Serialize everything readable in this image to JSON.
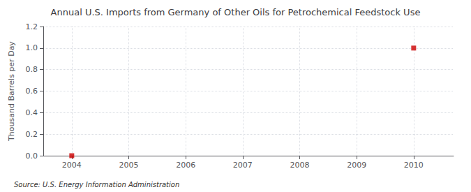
{
  "chart_data": {
    "type": "scatter",
    "title": "Annual U.S. Imports from Germany of Other Oils for Petrochemical Feedstock Use",
    "ylabel": "Thousand Barrels per Day",
    "source": "Source: U.S. Energy Information Administration",
    "x": [
      2010,
      2004
    ],
    "values": [
      1.0,
      0.0
    ],
    "color": "#cc0000",
    "marker": "square",
    "xlim": [
      2003.5,
      2010.7
    ],
    "xticks": [
      2004,
      2005,
      2006,
      2007,
      2008,
      2009,
      2010
    ],
    "ylim": [
      0.0,
      1.2
    ],
    "yticks": [
      {
        "value": 0.0,
        "label": "0.0"
      },
      0.2,
      0.4,
      0.6,
      0.8,
      {
        "value": 1.0,
        "label": "1.0"
      },
      1.2
    ],
    "grid": true
  }
}
